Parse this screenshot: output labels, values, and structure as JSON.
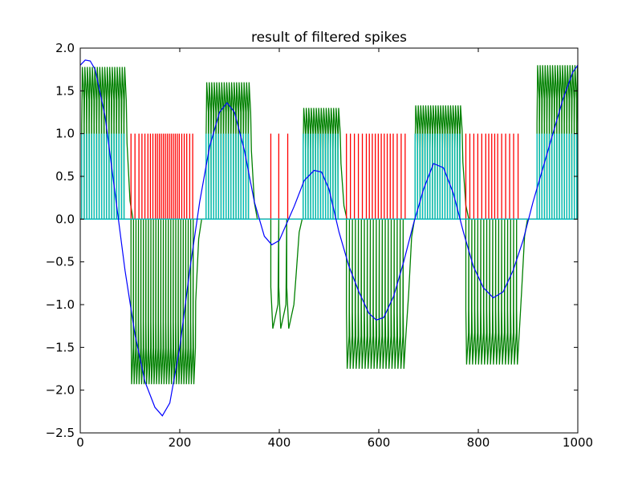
{
  "chart_data": {
    "type": "line",
    "title": "result of filtered spikes",
    "xlabel": "",
    "ylabel": "",
    "xlim": [
      0,
      1000
    ],
    "ylim": [
      -2.5,
      2.0
    ],
    "grid": false,
    "legend": "none",
    "xticks": [
      0,
      200,
      400,
      600,
      800,
      1000
    ],
    "xtick_labels": [
      "0",
      "200",
      "400",
      "600",
      "800",
      "1000"
    ],
    "yticks": [
      -2.5,
      -2.0,
      -1.5,
      -1.0,
      -0.5,
      0.0,
      0.5,
      1.0,
      1.5,
      2.0
    ],
    "ytick_labels": [
      "−2.5",
      "−2.0",
      "−1.5",
      "−1.0",
      "−0.5",
      "0.0",
      "0.5",
      "1.0",
      "1.5",
      "2.0"
    ],
    "series": [
      {
        "color": "#0000ff",
        "kind": "line",
        "x": [
          0,
          10,
          20,
          30,
          50,
          70,
          90,
          110,
          130,
          150,
          165,
          180,
          200,
          220,
          240,
          260,
          280,
          295,
          310,
          330,
          350,
          370,
          385,
          400,
          415,
          430,
          450,
          470,
          485,
          500,
          520,
          540,
          560,
          580,
          595,
          610,
          630,
          650,
          670,
          690,
          710,
          730,
          750,
          770,
          790,
          810,
          830,
          850,
          870,
          890,
          910,
          930,
          950,
          970,
          990,
          1000
        ],
        "y": [
          1.8,
          1.86,
          1.85,
          1.75,
          1.2,
          0.3,
          -0.6,
          -1.35,
          -1.9,
          -2.2,
          -2.3,
          -2.15,
          -1.5,
          -0.6,
          0.2,
          0.85,
          1.25,
          1.36,
          1.25,
          0.8,
          0.2,
          -0.2,
          -0.3,
          -0.25,
          -0.05,
          0.15,
          0.45,
          0.57,
          0.55,
          0.35,
          -0.15,
          -0.55,
          -0.85,
          -1.1,
          -1.18,
          -1.15,
          -0.9,
          -0.5,
          -0.05,
          0.35,
          0.65,
          0.6,
          0.3,
          -0.15,
          -0.55,
          -0.8,
          -0.92,
          -0.85,
          -0.6,
          -0.25,
          0.2,
          0.6,
          1.0,
          1.4,
          1.72,
          1.8
        ]
      },
      {
        "color": "#ff0000",
        "kind": "spikes",
        "height": 1.0,
        "x": [
          102,
          110,
          118,
          124,
          130,
          136,
          141,
          146,
          151,
          155,
          159,
          163,
          167,
          171,
          175,
          179,
          183,
          187,
          191,
          195,
          199,
          204,
          209,
          214,
          220,
          226,
          383,
          399,
          417,
          535,
          543,
          551,
          559,
          567,
          575,
          581,
          587,
          593,
          599,
          605,
          611,
          617,
          623,
          629,
          637,
          645,
          653,
          775,
          783,
          791,
          799,
          807,
          815,
          821,
          827,
          833,
          839,
          847,
          855,
          863,
          871,
          880
        ]
      },
      {
        "color": "#00bfbf",
        "kind": "filtered_spikes",
        "height": 1.0,
        "x": [
          3,
          8,
          13,
          18,
          23,
          28,
          33,
          38,
          43,
          48,
          53,
          58,
          63,
          68,
          73,
          78,
          83,
          88,
          253,
          258,
          263,
          268,
          273,
          278,
          283,
          288,
          293,
          298,
          303,
          308,
          313,
          318,
          323,
          328,
          333,
          338,
          448,
          453,
          458,
          463,
          468,
          473,
          478,
          483,
          488,
          493,
          498,
          503,
          508,
          513,
          518,
          673,
          678,
          683,
          688,
          693,
          698,
          703,
          708,
          713,
          718,
          723,
          728,
          733,
          738,
          743,
          748,
          753,
          758,
          763,
          918,
          923,
          928,
          933,
          938,
          943,
          948,
          953,
          958,
          963,
          968,
          973,
          978,
          983,
          988,
          993,
          998
        ]
      },
      {
        "color": "#008000",
        "kind": "pulse_train",
        "segments": [
          {
            "start": 3,
            "end": 89,
            "period": 5,
            "peak": 1.78
          },
          {
            "start": 102,
            "end": 227,
            "period": 5,
            "peak": -1.93
          },
          {
            "start": 253,
            "end": 339,
            "period": 5,
            "peak": 1.6
          },
          {
            "start": 383,
            "end": 418,
            "period": 16,
            "peak": -1.28
          },
          {
            "start": 448,
            "end": 519,
            "period": 5,
            "peak": 1.3
          },
          {
            "start": 535,
            "end": 654,
            "period": 6,
            "peak": -1.75
          },
          {
            "start": 673,
            "end": 764,
            "period": 5,
            "peak": 1.33
          },
          {
            "start": 775,
            "end": 881,
            "period": 6,
            "peak": -1.7
          },
          {
            "start": 918,
            "end": 999,
            "period": 5,
            "peak": 1.8
          }
        ]
      }
    ]
  }
}
